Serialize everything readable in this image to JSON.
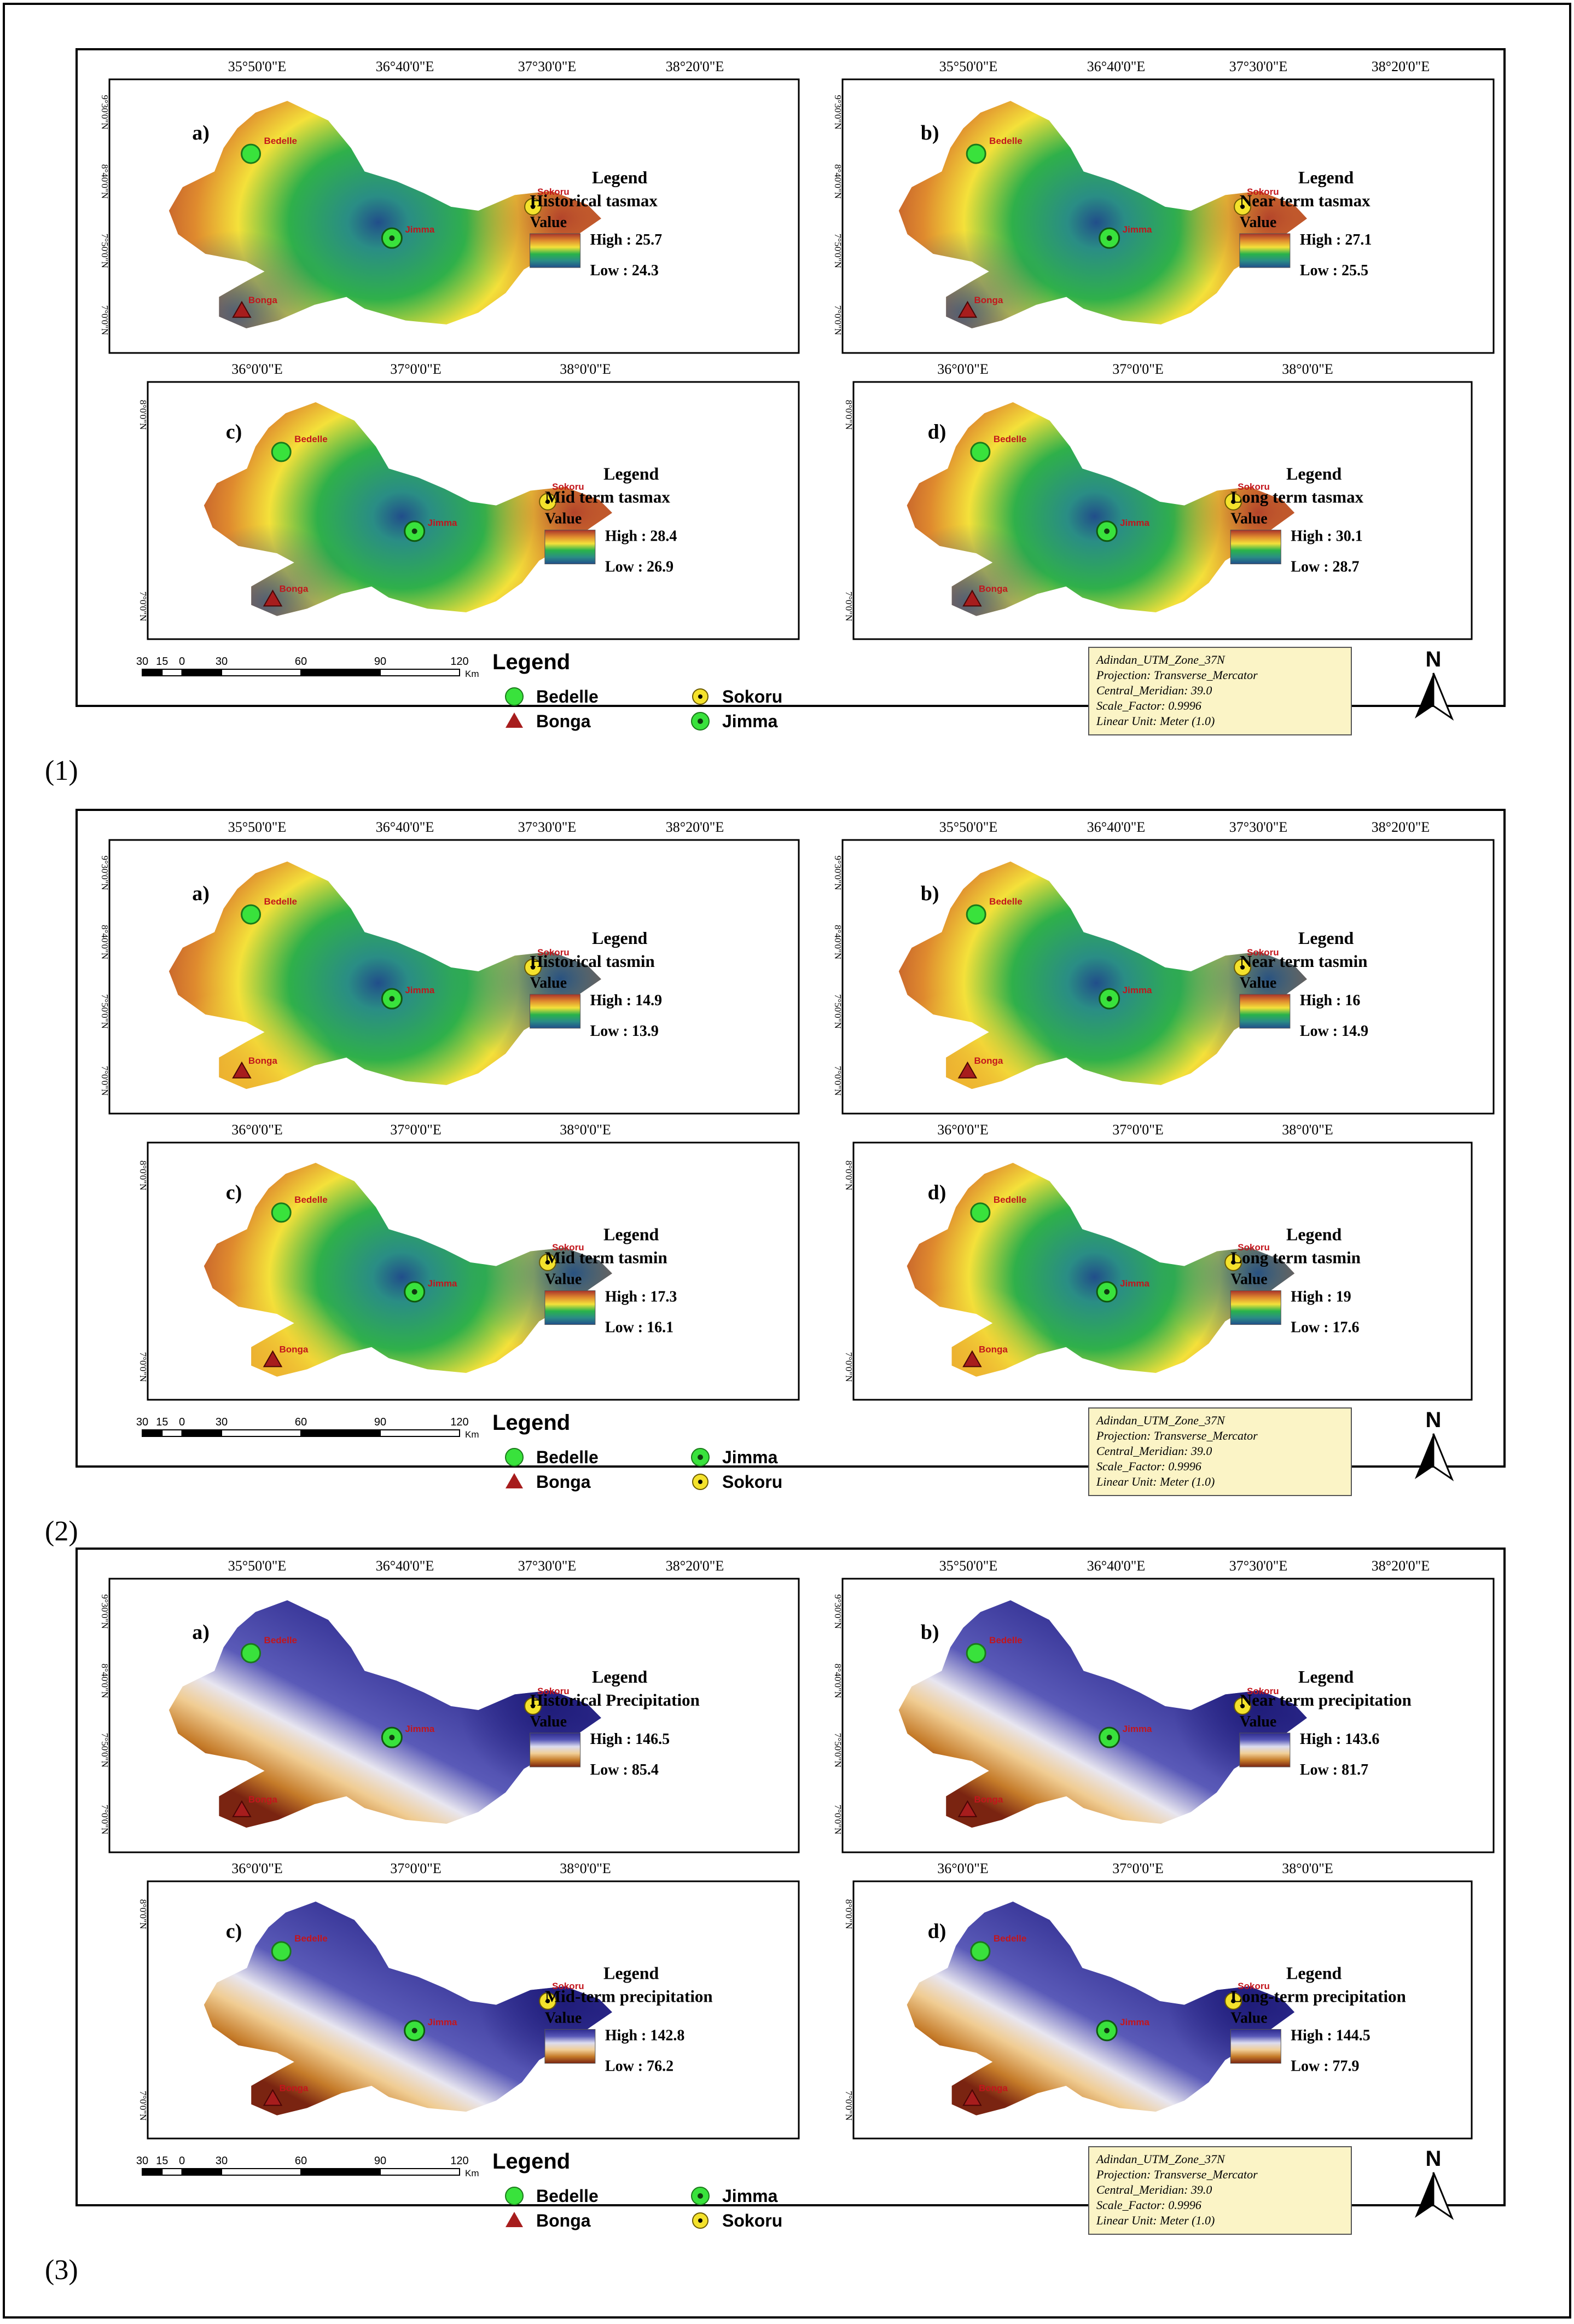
{
  "colors": {
    "temp_ramp": [
      "#a8322a",
      "#df8a2e",
      "#f4e13a",
      "#29b34a",
      "#2a8d85",
      "#214e8a"
    ],
    "precip_ramp": [
      "#2e2b8e",
      "#5757b7",
      "#dcdcef",
      "#f1cf98",
      "#c57b29",
      "#7a2411"
    ],
    "station_bedelle": "#39e23c",
    "station_sokoru": "#f4e22c",
    "station_jimma": "#39e23c",
    "station_bonga": "#a71d1d",
    "projection_box": "#fbf4c6"
  },
  "stations": {
    "bedelle": "Bedelle",
    "sokoru": "Sokoru",
    "jimma": "Jimma",
    "bonga": "Bonga"
  },
  "legend_common": {
    "heading": "Legend",
    "value_label": "Value",
    "high_prefix": "High : ",
    "low_prefix": "Low : "
  },
  "coords": {
    "top_ticks": [
      "35°50'0\"E",
      "36°40'0\"E",
      "37°30'0\"E",
      "38°20'0\"E"
    ],
    "bottom_ticks": [
      "36°0'0\"E",
      "37°0'0\"E",
      "38°0'0\"E"
    ],
    "lat_ticks_top": [
      "9°30'0\"N",
      "8°40'0\"N",
      "7°50'0\"N",
      "7°0'0\"N"
    ],
    "lat_ticks_bottom": [
      "8°0'0\"N",
      "7°0'0\"N"
    ]
  },
  "scalebar": {
    "ticks": [
      "30",
      "15",
      "0",
      "30",
      "60",
      "90",
      "120"
    ],
    "unit": "Km"
  },
  "projection_info": [
    "Adindan_UTM_Zone_37N",
    "Projection: Transverse_Mercator",
    "Central_Meridian: 39.0",
    "Scale_Factor: 0.9996",
    "Linear Unit: Meter (1.0)"
  ],
  "north_arrow": "N",
  "figures": [
    {
      "caption": "(1)",
      "variable": "temperature",
      "panels": [
        {
          "letter": "a)",
          "title": "Historical tasmax",
          "high": "25.7",
          "low": "24.3"
        },
        {
          "letter": "b)",
          "title": "Near term tasmax",
          "high": "27.1",
          "low": "25.5"
        },
        {
          "letter": "c)",
          "title": "Mid term tasmax",
          "high": "28.4",
          "low": "26.9"
        },
        {
          "letter": "d)",
          "title": "Long term tasmax",
          "high": "30.1",
          "low": "28.7"
        }
      ]
    },
    {
      "caption": "(2)",
      "variable": "temperature",
      "panels": [
        {
          "letter": "a)",
          "title": "Historical tasmin",
          "high": "14.9",
          "low": "13.9"
        },
        {
          "letter": "b)",
          "title": "Near term tasmin",
          "high": "16",
          "low": "14.9"
        },
        {
          "letter": "c)",
          "title": "Mid term tasmin",
          "high": "17.3",
          "low": "16.1"
        },
        {
          "letter": "d)",
          "title": "Long term tasmin",
          "high": "19",
          "low": "17.6"
        }
      ]
    },
    {
      "caption": "(3)",
      "variable": "precipitation",
      "panels": [
        {
          "letter": "a)",
          "title": "Historical Precipitation",
          "high": "146.5",
          "low": "85.4"
        },
        {
          "letter": "b)",
          "title": "Near term precipitation",
          "high": "143.6",
          "low": "81.7"
        },
        {
          "letter": "c)",
          "title": "Mid-term precipitation",
          "high": "142.8",
          "low": "76.2"
        },
        {
          "letter": "d)",
          "title": "Long-term precipitation",
          "high": "144.5",
          "low": "77.9"
        }
      ]
    }
  ]
}
